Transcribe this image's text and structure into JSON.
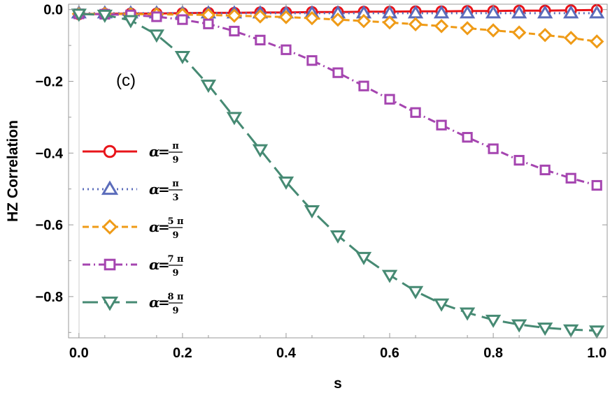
{
  "chart_data": {
    "type": "line",
    "panel_label": "(c)",
    "xlabel": "s",
    "ylabel": "HZ Correlation",
    "xlim": [
      -0.02,
      1.02
    ],
    "ylim": [
      -0.915,
      0.015
    ],
    "x_ticks": [
      0.0,
      0.2,
      0.4,
      0.6,
      0.8,
      1.0
    ],
    "x_tick_labels": [
      "0.0",
      "0.2",
      "0.4",
      "0.6",
      "0.8",
      "1.0"
    ],
    "y_ticks": [
      0.0,
      -0.2,
      -0.4,
      -0.6,
      -0.8
    ],
    "y_tick_labels": [
      "0.0",
      "−0.2",
      "−0.4",
      "−0.6",
      "−0.8"
    ],
    "grid": false,
    "legend_position": "center-left",
    "x": [
      0.0,
      0.05,
      0.1,
      0.15,
      0.2,
      0.25,
      0.3,
      0.35,
      0.4,
      0.45,
      0.5,
      0.55,
      0.6,
      0.65,
      0.7,
      0.75,
      0.8,
      0.85,
      0.9,
      0.95,
      1.0
    ],
    "series": [
      {
        "name": "α=π/9",
        "legend_alpha": "α",
        "legend_eq": "=",
        "legend_num": "π",
        "legend_den": "9",
        "color": "#e8141a",
        "dash": "solid",
        "marker": "circle",
        "values": [
          -0.013,
          -0.012,
          -0.011,
          -0.011,
          -0.01,
          -0.009,
          -0.009,
          -0.008,
          -0.008,
          -0.007,
          -0.007,
          -0.006,
          -0.006,
          -0.005,
          -0.005,
          -0.004,
          -0.004,
          -0.003,
          -0.003,
          -0.002,
          -0.001
        ]
      },
      {
        "name": "α=π/3",
        "legend_alpha": "α",
        "legend_eq": "=",
        "legend_num": "π",
        "legend_den": "3",
        "color": "#5b6cbb",
        "dash": "dotted",
        "marker": "triangle-up",
        "values": [
          -0.01,
          -0.01,
          -0.01,
          -0.01,
          -0.01,
          -0.01,
          -0.01,
          -0.01,
          -0.01,
          -0.01,
          -0.01,
          -0.01,
          -0.01,
          -0.01,
          -0.01,
          -0.01,
          -0.01,
          -0.01,
          -0.01,
          -0.01,
          -0.01
        ]
      },
      {
        "name": "α=5π/9",
        "legend_alpha": "α",
        "legend_eq": "=",
        "legend_num": "5 π",
        "legend_den": "9",
        "color": "#ef9b17",
        "dash": "dashed",
        "marker": "diamond",
        "values": [
          -0.012,
          -0.012,
          -0.013,
          -0.013,
          -0.014,
          -0.015,
          -0.017,
          -0.019,
          -0.021,
          -0.024,
          -0.028,
          -0.032,
          -0.036,
          -0.041,
          -0.046,
          -0.052,
          -0.058,
          -0.064,
          -0.071,
          -0.079,
          -0.089
        ]
      },
      {
        "name": "α=7π/9",
        "legend_alpha": "α",
        "legend_eq": "=",
        "legend_num": "7 π",
        "legend_den": "9",
        "color": "#a545b0",
        "dash": "dash-dot",
        "marker": "square",
        "values": [
          -0.012,
          -0.013,
          -0.015,
          -0.02,
          -0.028,
          -0.04,
          -0.06,
          -0.085,
          -0.112,
          -0.142,
          -0.176,
          -0.213,
          -0.25,
          -0.287,
          -0.322,
          -0.356,
          -0.388,
          -0.42,
          -0.447,
          -0.47,
          -0.49
        ]
      },
      {
        "name": "α=8π/9",
        "legend_alpha": "α",
        "legend_eq": "=",
        "legend_num": "8 π",
        "legend_den": "9",
        "color": "#468a73",
        "dash": "long-dash",
        "marker": "triangle-down",
        "values": [
          -0.012,
          -0.015,
          -0.03,
          -0.07,
          -0.13,
          -0.21,
          -0.3,
          -0.39,
          -0.48,
          -0.56,
          -0.63,
          -0.69,
          -0.74,
          -0.785,
          -0.82,
          -0.845,
          -0.865,
          -0.878,
          -0.887,
          -0.892,
          -0.895
        ]
      }
    ]
  }
}
